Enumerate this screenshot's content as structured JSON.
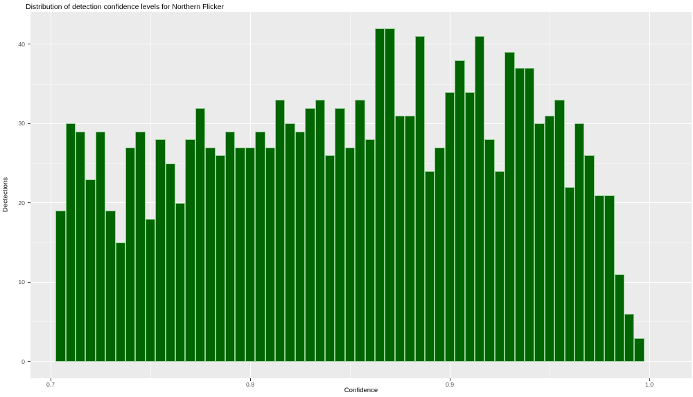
{
  "chart_data": {
    "type": "bar",
    "subtype": "histogram",
    "title": "Distribution of detection confidence levels for Northern Flicker",
    "xlabel": "Confidence",
    "ylabel": "Dectections",
    "bin_width": 0.005,
    "first_bin_center": 0.705,
    "values": [
      19,
      30,
      29,
      23,
      29,
      19,
      15,
      27,
      29,
      18,
      28,
      25,
      20,
      28,
      32,
      27,
      26,
      29,
      27,
      27,
      29,
      27,
      33,
      30,
      29,
      32,
      33,
      26,
      32,
      27,
      33,
      28,
      42,
      42,
      31,
      31,
      41,
      24,
      27,
      34,
      38,
      34,
      41,
      28,
      24,
      39,
      37,
      37,
      30,
      31,
      33,
      22,
      30,
      26,
      21,
      21,
      11,
      6,
      3
    ],
    "x_ticks": [
      {
        "value": 0.7,
        "label": "0.7"
      },
      {
        "value": 0.8,
        "label": "0.8"
      },
      {
        "value": 0.9,
        "label": "0.9"
      },
      {
        "value": 1.0,
        "label": "1.0"
      }
    ],
    "x_minor_ticks": [
      0.75,
      0.85,
      0.95
    ],
    "y_ticks": [
      {
        "value": 0,
        "label": "0"
      },
      {
        "value": 10,
        "label": "10"
      },
      {
        "value": 20,
        "label": "20"
      },
      {
        "value": 30,
        "label": "30"
      },
      {
        "value": 40,
        "label": "40"
      }
    ],
    "y_minor_ticks": [
      5,
      15,
      25,
      35
    ],
    "ylim": [
      -2.1,
      44.1
    ],
    "grid": true,
    "legend": false,
    "colors": {
      "bar_fill": "#006400",
      "bar_stroke": "#8FCE8F",
      "panel_bg": "#EBEBEB",
      "grid_major": "#FFFFFF",
      "grid_minor": "rgba(255,255,255,0.55)",
      "tick_label": "#4D4D4D",
      "axis_title": "#000000",
      "tick_mark": "#333333"
    }
  }
}
